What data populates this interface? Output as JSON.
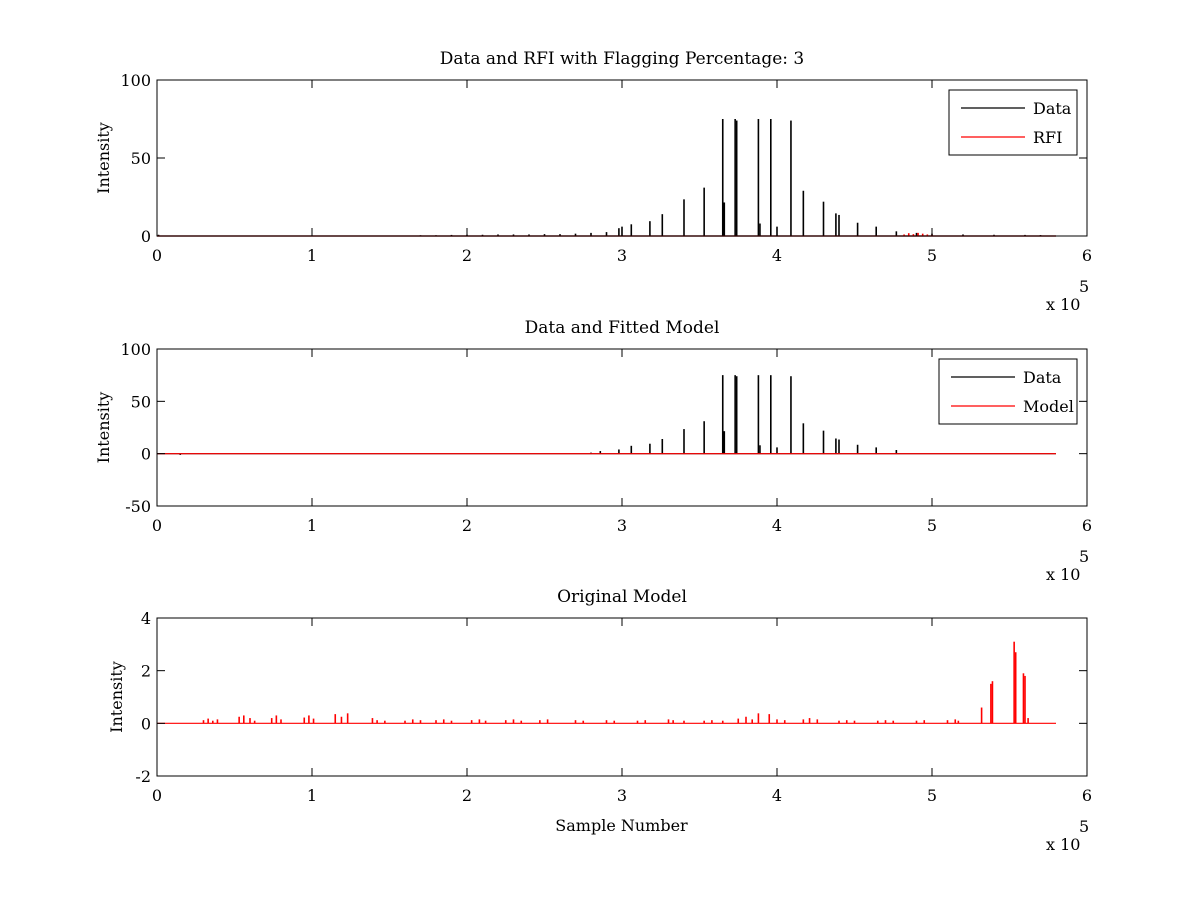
{
  "chart_data": [
    {
      "type": "line",
      "title": "Data and RFI with Flagging Percentage: 3",
      "xlabel": "",
      "ylabel": "Intensity",
      "xlim": [
        0,
        600000
      ],
      "ylim": [
        0,
        100
      ],
      "xticks": [
        "0",
        "1",
        "2",
        "3",
        "4",
        "5",
        "6"
      ],
      "xtick_values": [
        0,
        100000,
        200000,
        300000,
        400000,
        500000,
        600000
      ],
      "yticks": [
        "0",
        "50",
        "100"
      ],
      "ytick_values": [
        0,
        50,
        100
      ],
      "exponent_label": "x 10",
      "exponent": "5",
      "grid": false,
      "legend_position": "top-right",
      "baseline_end": 580000,
      "series": [
        {
          "name": "Data",
          "color": "#000000",
          "spikes": [
            [
              1000,
              0.8
            ],
            [
              100000,
              0.3
            ],
            [
              170000,
              0.5
            ],
            [
              180000,
              0.5
            ],
            [
              190000,
              0.7
            ],
            [
              200000,
              0.8
            ],
            [
              210000,
              0.8
            ],
            [
              220000,
              1.0
            ],
            [
              230000,
              1.0
            ],
            [
              240000,
              1.0
            ],
            [
              250000,
              1.2
            ],
            [
              260000,
              1.2
            ],
            [
              270000,
              1.5
            ],
            [
              280000,
              2.0
            ],
            [
              290000,
              2.5
            ],
            [
              298000,
              5.0
            ],
            [
              300000,
              6.0
            ],
            [
              306000,
              7.5
            ],
            [
              318000,
              9.5
            ],
            [
              326000,
              14
            ],
            [
              340000,
              23.5
            ],
            [
              353000,
              31
            ],
            [
              365000,
              75
            ],
            [
              366000,
              21.5
            ],
            [
              373000,
              75
            ],
            [
              374000,
              74
            ],
            [
              388000,
              75
            ],
            [
              389000,
              8
            ],
            [
              396000,
              75
            ],
            [
              400000,
              6
            ],
            [
              409000,
              74
            ],
            [
              417000,
              29
            ],
            [
              430000,
              22
            ],
            [
              438000,
              14.5
            ],
            [
              440000,
              13.5
            ],
            [
              452000,
              8.5
            ],
            [
              464000,
              6
            ],
            [
              477000,
              3
            ],
            [
              490000,
              2
            ],
            [
              500000,
              1.5
            ],
            [
              520000,
              1.0
            ],
            [
              540000,
              0.8
            ],
            [
              560000,
              0.7
            ],
            [
              570000,
              0.6
            ]
          ]
        },
        {
          "name": "RFI",
          "color": "#ff0000",
          "spikes": [
            [
              482000,
              1.0
            ],
            [
              485000,
              1.8
            ],
            [
              488000,
              1.2
            ],
            [
              491000,
              2.0
            ],
            [
              494000,
              1.5
            ],
            [
              497000,
              1.0
            ],
            [
              500000,
              0.8
            ]
          ]
        }
      ]
    },
    {
      "type": "line",
      "title": "Data and Fitted Model",
      "xlabel": "",
      "ylabel": "Intensity",
      "xlim": [
        0,
        600000
      ],
      "ylim": [
        -50,
        100
      ],
      "xticks": [
        "0",
        "1",
        "2",
        "3",
        "4",
        "5",
        "6"
      ],
      "xtick_values": [
        0,
        100000,
        200000,
        300000,
        400000,
        500000,
        600000
      ],
      "yticks": [
        "-50",
        "0",
        "50",
        "100"
      ],
      "ytick_values": [
        -50,
        0,
        50,
        100
      ],
      "exponent_label": "x 10",
      "exponent": "5",
      "grid": false,
      "legend_position": "top-right",
      "baseline_end": 580000,
      "series": [
        {
          "name": "Data",
          "color": "#000000",
          "spikes": [
            [
              15000,
              -1.2
            ],
            [
              280000,
              1.0
            ],
            [
              286000,
              2.5
            ],
            [
              298000,
              4.0
            ],
            [
              306000,
              7.5
            ],
            [
              318000,
              9.5
            ],
            [
              326000,
              14
            ],
            [
              340000,
              23.5
            ],
            [
              353000,
              31
            ],
            [
              365000,
              75
            ],
            [
              366000,
              21.5
            ],
            [
              373000,
              75
            ],
            [
              374000,
              74
            ],
            [
              388000,
              75
            ],
            [
              389000,
              8
            ],
            [
              396000,
              75
            ],
            [
              400000,
              6
            ],
            [
              409000,
              74
            ],
            [
              417000,
              29
            ],
            [
              430000,
              22
            ],
            [
              438000,
              14.5
            ],
            [
              440000,
              13.5
            ],
            [
              452000,
              8.5
            ],
            [
              464000,
              6
            ],
            [
              477000,
              3.5
            ]
          ]
        },
        {
          "name": "Model",
          "color": "#ff0000",
          "spikes": []
        }
      ]
    },
    {
      "type": "line",
      "title": "Original Model",
      "xlabel": "Sample Number",
      "ylabel": "Intensity",
      "xlim": [
        0,
        600000
      ],
      "ylim": [
        -2,
        4
      ],
      "xticks": [
        "0",
        "1",
        "2",
        "3",
        "4",
        "5",
        "6"
      ],
      "xtick_values": [
        0,
        100000,
        200000,
        300000,
        400000,
        500000,
        600000
      ],
      "yticks": [
        "-2",
        "0",
        "2",
        "4"
      ],
      "ytick_values": [
        -2,
        0,
        2,
        4
      ],
      "exponent_label": "x 10",
      "exponent": "5",
      "grid": false,
      "baseline_end": 580000,
      "series": [
        {
          "color": "#ff0000",
          "spikes": [
            [
              30000,
              0.12
            ],
            [
              33000,
              0.18
            ],
            [
              36000,
              0.1
            ],
            [
              39000,
              0.15
            ],
            [
              53000,
              0.25
            ],
            [
              56000,
              0.3
            ],
            [
              60000,
              0.2
            ],
            [
              63000,
              0.1
            ],
            [
              74000,
              0.2
            ],
            [
              77000,
              0.3
            ],
            [
              80000,
              0.15
            ],
            [
              95000,
              0.22
            ],
            [
              98000,
              0.3
            ],
            [
              101000,
              0.18
            ],
            [
              115000,
              0.35
            ],
            [
              119000,
              0.25
            ],
            [
              123000,
              0.38
            ],
            [
              139000,
              0.2
            ],
            [
              142000,
              0.12
            ],
            [
              147000,
              0.1
            ],
            [
              160000,
              0.1
            ],
            [
              165000,
              0.15
            ],
            [
              170000,
              0.12
            ],
            [
              180000,
              0.12
            ],
            [
              185000,
              0.15
            ],
            [
              190000,
              0.1
            ],
            [
              203000,
              0.12
            ],
            [
              208000,
              0.15
            ],
            [
              212000,
              0.1
            ],
            [
              225000,
              0.12
            ],
            [
              230000,
              0.15
            ],
            [
              235000,
              0.1
            ],
            [
              247000,
              0.12
            ],
            [
              252000,
              0.15
            ],
            [
              270000,
              0.12
            ],
            [
              275000,
              0.1
            ],
            [
              290000,
              0.12
            ],
            [
              295000,
              0.1
            ],
            [
              310000,
              0.1
            ],
            [
              315000,
              0.12
            ],
            [
              330000,
              0.15
            ],
            [
              333000,
              0.12
            ],
            [
              340000,
              0.1
            ],
            [
              353000,
              0.1
            ],
            [
              358000,
              0.12
            ],
            [
              365000,
              0.1
            ],
            [
              375000,
              0.18
            ],
            [
              380000,
              0.25
            ],
            [
              384000,
              0.15
            ],
            [
              388000,
              0.38
            ],
            [
              395000,
              0.35
            ],
            [
              400000,
              0.15
            ],
            [
              405000,
              0.12
            ],
            [
              417000,
              0.15
            ],
            [
              421000,
              0.2
            ],
            [
              426000,
              0.15
            ],
            [
              440000,
              0.1
            ],
            [
              445000,
              0.12
            ],
            [
              450000,
              0.1
            ],
            [
              465000,
              0.1
            ],
            [
              470000,
              0.12
            ],
            [
              475000,
              0.1
            ],
            [
              490000,
              0.1
            ],
            [
              495000,
              0.12
            ],
            [
              510000,
              0.12
            ],
            [
              515000,
              0.15
            ],
            [
              517000,
              0.1
            ],
            [
              532000,
              0.6
            ],
            [
              538000,
              1.5
            ],
            [
              539000,
              1.6
            ],
            [
              553000,
              3.1
            ],
            [
              554000,
              2.7
            ],
            [
              559000,
              1.9
            ],
            [
              560000,
              1.8
            ],
            [
              562000,
              0.2
            ]
          ]
        }
      ]
    }
  ]
}
